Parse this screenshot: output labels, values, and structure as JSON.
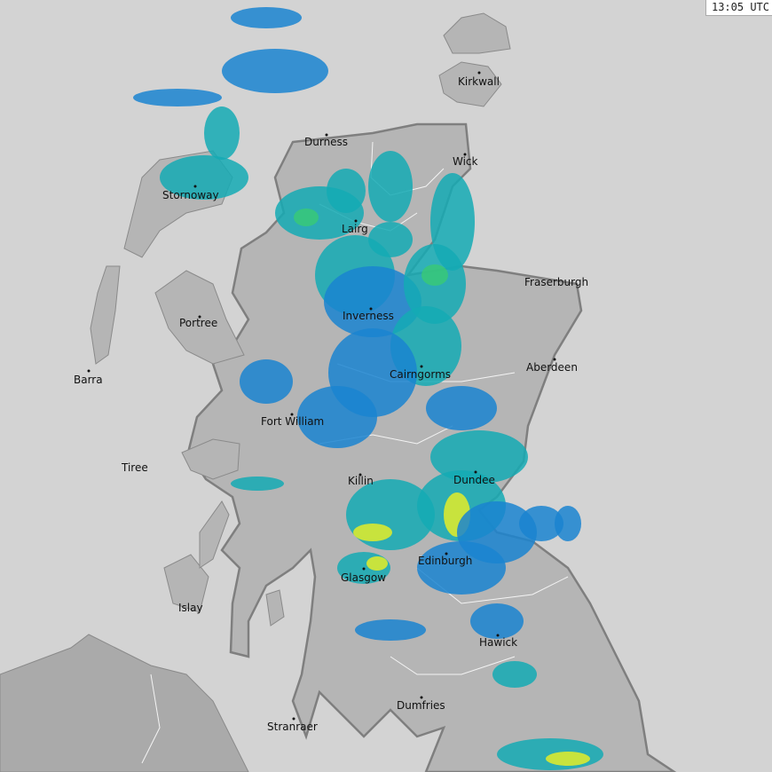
{
  "timestamp": "13:05 UTC",
  "colors": {
    "sea": "#d3d3d3",
    "land": "#b5b5b5",
    "england": "#a9a9a9",
    "border": "#7f7f7f",
    "rain_light": "#1a84d0",
    "rain_moderate": "#14aab4",
    "rain_heavy": "#38c878",
    "rain_very_heavy": "#e4ec28"
  },
  "places": [
    {
      "name": "Kirkwall"
    },
    {
      "name": "Durness"
    },
    {
      "name": "Wick"
    },
    {
      "name": "Stornoway"
    },
    {
      "name": "Lairg"
    },
    {
      "name": "Fraserburgh"
    },
    {
      "name": "Inverness"
    },
    {
      "name": "Portree"
    },
    {
      "name": "Aberdeen"
    },
    {
      "name": "Barra"
    },
    {
      "name": "Cairngorms"
    },
    {
      "name": "Fort William"
    },
    {
      "name": "Tiree"
    },
    {
      "name": "Killin"
    },
    {
      "name": "Dundee"
    },
    {
      "name": "Edinburgh"
    },
    {
      "name": "Glasgow"
    },
    {
      "name": "Islay"
    },
    {
      "name": "Hawick"
    },
    {
      "name": "Dumfries"
    },
    {
      "name": "Stranraer"
    }
  ]
}
